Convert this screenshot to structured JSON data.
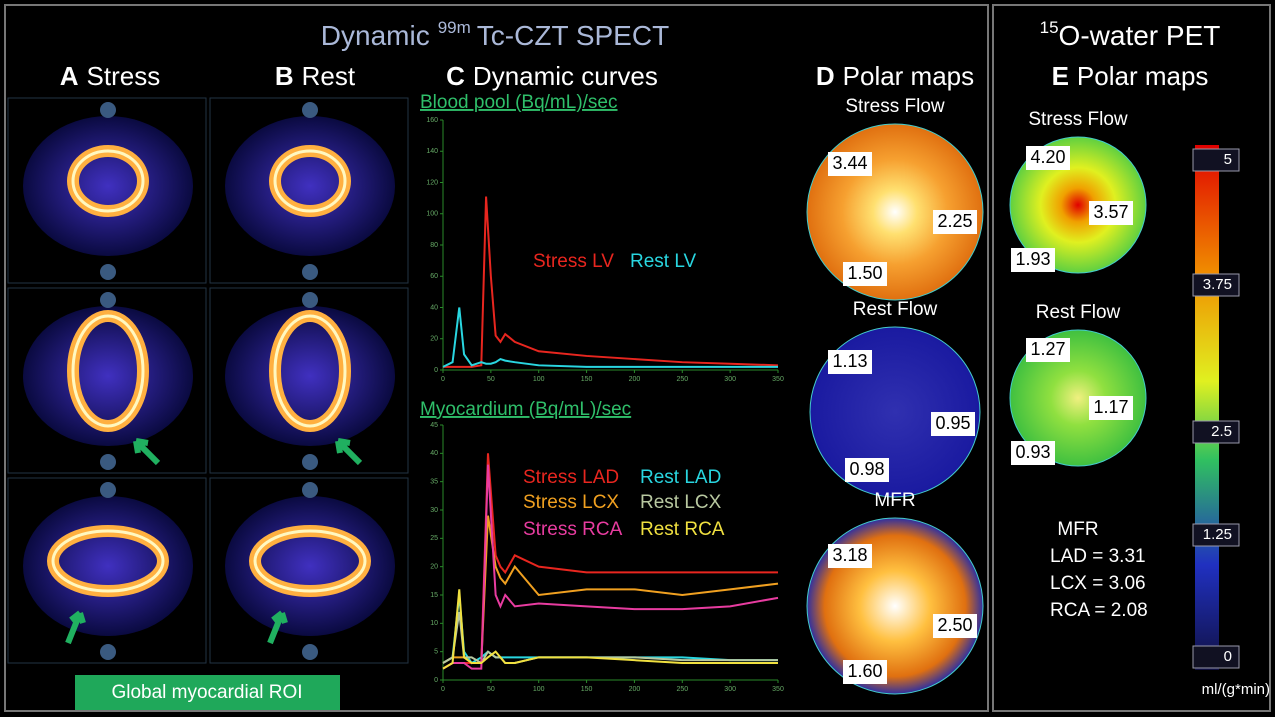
{
  "header": {
    "prefix": "Dynamic",
    "isotope": "99m",
    "suffix": "Tc-CZT SPECT"
  },
  "pet_header": {
    "isotope": "15",
    "suffix": "O-water PET"
  },
  "panels": [
    {
      "letter": "A",
      "title": "Stress"
    },
    {
      "letter": "B",
      "title": "Rest"
    },
    {
      "letter": "C",
      "title": "Dynamic curves"
    },
    {
      "letter": "D",
      "title": "Polar maps"
    },
    {
      "letter": "E",
      "title": "Polar maps"
    }
  ],
  "roi_label": "Global myocardial ROI",
  "polar_maps": {
    "spect": [
      {
        "title": "Stress Flow",
        "values": [
          "3.44",
          "2.25",
          "1.50"
        ]
      },
      {
        "title": "Rest Flow",
        "values": [
          "1.13",
          "0.95",
          "0.98"
        ]
      },
      {
        "title": "MFR",
        "values": [
          "3.18",
          "2.50",
          "1.60"
        ]
      }
    ],
    "pet": [
      {
        "title": "Stress Flow",
        "values": [
          "4.20",
          "3.57",
          "1.93"
        ]
      },
      {
        "title": "Rest Flow",
        "values": [
          "1.27",
          "1.17",
          "0.93"
        ]
      }
    ]
  },
  "pet_mfr": {
    "title": "MFR",
    "lines": [
      "LAD = 3.31",
      "LCX = 3.06",
      "RCA = 2.08"
    ]
  },
  "colorbar": {
    "labels": [
      "5",
      "3.75",
      "2.5",
      "1.25",
      "0"
    ],
    "unit": "ml/(g*min)"
  },
  "chart_data": [
    {
      "type": "line",
      "title": "Blood pool (Bq/mL)/sec",
      "x": [
        0,
        10,
        17,
        22,
        30,
        40,
        45,
        50,
        55,
        60,
        65,
        75,
        100,
        150,
        200,
        250,
        300,
        350
      ],
      "series": [
        {
          "name": "Stress LV",
          "color": "#e8261f",
          "values": [
            2,
            2,
            2,
            2,
            2,
            3,
            111,
            60,
            22,
            18,
            23,
            18,
            12,
            9,
            7,
            5,
            4,
            3
          ]
        },
        {
          "name": "Rest LV",
          "color": "#29d6e0",
          "values": [
            2,
            5,
            40,
            10,
            3,
            5,
            4,
            4,
            5,
            7,
            6,
            5,
            3,
            2,
            2,
            2,
            2,
            2
          ]
        }
      ],
      "xlim": [
        0,
        350
      ],
      "xticks": [
        0,
        50,
        100,
        150,
        200,
        250,
        300,
        350
      ],
      "ylim": [
        0,
        160
      ],
      "yticks": [
        0,
        20,
        40,
        60,
        80,
        100,
        120,
        140,
        160
      ]
    },
    {
      "type": "line",
      "title": "Myocardium (Bq/mL)/sec",
      "x": [
        0,
        10,
        17,
        22,
        30,
        40,
        47,
        55,
        60,
        65,
        75,
        100,
        150,
        200,
        250,
        300,
        350
      ],
      "series": [
        {
          "name": "Stress LAD",
          "color": "#e8261f",
          "values": [
            2,
            3,
            3,
            3,
            3,
            3,
            40,
            22,
            20,
            19,
            22,
            20,
            19,
            19,
            19,
            19,
            19
          ]
        },
        {
          "name": "Rest LAD",
          "color": "#29d6e0",
          "values": [
            3,
            4,
            15,
            5,
            3,
            4,
            5,
            4,
            4,
            4,
            4,
            4,
            4,
            4,
            4,
            3.5,
            3.5
          ]
        },
        {
          "name": "Stress LCX",
          "color": "#f0a020",
          "values": [
            3,
            4,
            4,
            4,
            3,
            3,
            29,
            20,
            18,
            17,
            20,
            15,
            16,
            16,
            15,
            16,
            17
          ]
        },
        {
          "name": "Rest LCX",
          "color": "#b8c8a0",
          "values": [
            3,
            4,
            12,
            4,
            4,
            3,
            5,
            4,
            4,
            3,
            3,
            4,
            4,
            4,
            3.5,
            3.5,
            3.5
          ]
        },
        {
          "name": "Stress RCA",
          "color": "#e83ca0",
          "values": [
            2,
            3,
            3,
            3,
            2,
            2,
            38,
            15,
            13,
            15,
            13,
            13.5,
            13,
            12.5,
            12.5,
            13,
            14.5
          ]
        },
        {
          "name": "Rest RCA",
          "color": "#f0e040",
          "values": [
            2,
            3,
            16,
            4,
            3,
            3,
            4,
            5,
            4,
            3,
            3,
            4,
            4,
            3.5,
            3,
            3,
            3
          ]
        }
      ],
      "xlim": [
        0,
        350
      ],
      "xticks": [
        0,
        50,
        100,
        150,
        200,
        250,
        300,
        350
      ],
      "ylim": [
        0,
        45
      ],
      "yticks": [
        0,
        5,
        10,
        15,
        20,
        25,
        30,
        35,
        40,
        45
      ]
    }
  ]
}
